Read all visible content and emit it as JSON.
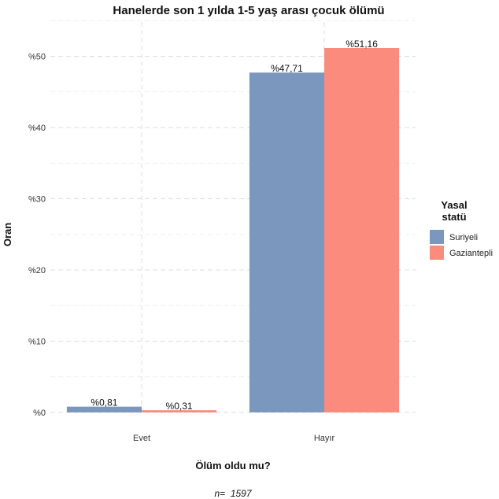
{
  "chart_data": {
    "type": "bar",
    "title": "Hanelerde son 1 yılda 1-5 yaş arası çocuk ölümü",
    "xlabel": "Ölüm oldu mu?",
    "ylabel": "Oran",
    "categories": [
      "Evet",
      "Hayır"
    ],
    "series": [
      {
        "name": "Suriyeli",
        "color": "#7b97bd",
        "values": [
          0.81,
          47.71
        ],
        "labels": [
          "%0,81",
          "%47,71"
        ]
      },
      {
        "name": "Gaziantepli",
        "color": "#fb8b7c",
        "values": [
          0.31,
          51.16
        ],
        "labels": [
          "%0,31",
          "%51,16"
        ]
      }
    ],
    "ylim": [
      0,
      55
    ],
    "yticks": [
      0,
      10,
      20,
      30,
      40,
      50
    ],
    "ytick_labels": [
      "%0",
      "%10",
      "%20",
      "%30",
      "%40",
      "%50"
    ],
    "grid": true,
    "legend": {
      "title_lines": [
        "Yasal",
        "statü"
      ],
      "position": "right"
    },
    "caption": "n=  1597"
  }
}
